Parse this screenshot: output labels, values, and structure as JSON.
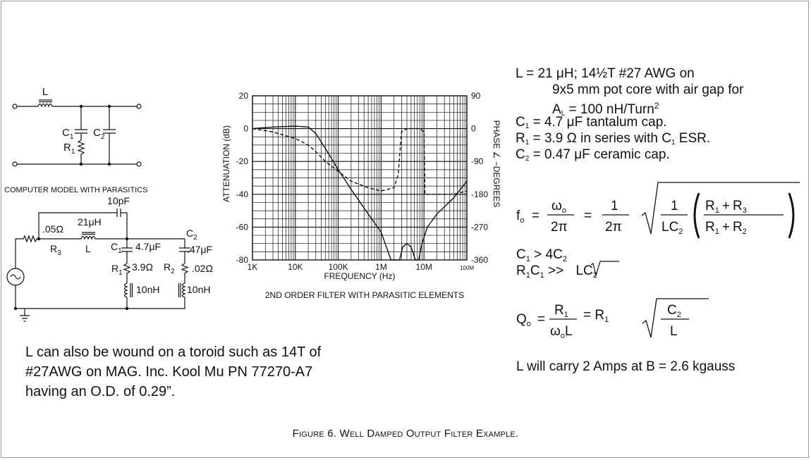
{
  "schematic_top": {
    "L": "L",
    "C1": "C",
    "C1_sub": "1",
    "R1": "R",
    "R1_sub": "1",
    "C2": "C",
    "C2_sub": "2"
  },
  "model_heading": "COMPUTER MODEL WITH PARASITICS",
  "schematic_model": {
    "cap_10pF": "10pF",
    "r3_value": ".05Ω",
    "r3_label": "R",
    "r3_sub": "3",
    "l_value": "21μH",
    "l_label": "L",
    "c1_label": "C",
    "c1_sub": "1",
    "c1_value": "4.7μF",
    "r1_label": "R",
    "r1_sub": "1",
    "r1_value": "3.9Ω",
    "r2_label": "R",
    "r2_sub": "2",
    "r2_value": ".02Ω",
    "c2_label": "C",
    "c2_sub": "2",
    "c2_value": ".47μF",
    "esl1": "10nH",
    "esl2": "10nH"
  },
  "chart_data": {
    "type": "line",
    "title": "2ND ORDER FILTER WITH PARASITIC ELEMENTS",
    "xlabel": "FREQUENCY (Hz)",
    "ylabel": "ATTENUATION (dB)",
    "y2label": "PHASE ∠ −DEGREES",
    "x_scale": "log",
    "xlim": [
      1000,
      100000000
    ],
    "ylim": [
      -80,
      20
    ],
    "y2lim": [
      -360,
      90
    ],
    "x_ticks": [
      "1K",
      "10K",
      "100K",
      "1M",
      "10M",
      "100M"
    ],
    "y_ticks": [
      "20",
      "0",
      "-20",
      "-40",
      "-60",
      "-80"
    ],
    "y2_ticks": [
      "90",
      "0",
      "-90",
      "-180",
      "-270",
      "-360"
    ],
    "grid": true,
    "series": [
      {
        "style": "solid",
        "axis": "left",
        "x": [
          1000,
          3000,
          10000,
          20000,
          30000,
          50000,
          100000,
          200000,
          500000,
          1000000,
          1700000,
          2700000,
          3200000,
          4000000,
          5000000,
          6300000,
          7500000,
          9000000,
          12000000,
          20000000,
          50000000,
          100000000
        ],
        "y": [
          0,
          1,
          1.5,
          1,
          -3,
          -12,
          -25,
          -37,
          -52,
          -63,
          -80,
          -80,
          -72,
          -70,
          -72,
          -80,
          -80,
          -70,
          -60,
          -52,
          -42,
          -32
        ]
      },
      {
        "style": "dashed",
        "axis": "right",
        "x": [
          1000,
          3000,
          10000,
          20000,
          30000,
          50000,
          100000,
          200000,
          500000,
          1000000,
          2000000,
          2500000,
          3000000,
          4000000,
          8000000,
          10000000,
          10500000,
          20000000,
          50000000,
          100000000
        ],
        "y": [
          0,
          -9,
          -27,
          -45,
          -63,
          -90,
          -117,
          -144,
          -162,
          -171,
          -162,
          -126,
          -9,
          0,
          0,
          -9,
          -180,
          -180,
          -180,
          -171
        ]
      }
    ]
  },
  "specs": {
    "l_line1": "L =  21 μH; 14½T #27 AWG on",
    "l_line2": "9x5 mm pot core with air gap for",
    "al_label": "A",
    "al_sub": "L",
    "al_value": " = 100 nH/Turn",
    "al_sup": "2",
    "c1_label": "C",
    "c1_sub": "1",
    "c1_text": " = 4.7 μF tantalum cap.",
    "r1_label": "R",
    "r1_sub": "1",
    "r1_text": " = 3.9 Ω in series with C",
    "r1_tail_sub": "1",
    "r1_tail": " ESR.",
    "c2_label": "C",
    "c2_sub": "2",
    "c2_text": " = 0.47 μF ceramic cap."
  },
  "formulas": {
    "f_label": "f",
    "f_sub": "o",
    "eq": "=",
    "omega": "ω",
    "omega_sub": "o",
    "two_pi": "2π",
    "one": "1",
    "lc2_L": "LC",
    "lc2_sub": "2",
    "r1": "R",
    "r1_sub": "1",
    "r3": "R",
    "r3_sub": "3",
    "r2": "R",
    "r2_sub": "2",
    "plus": "+",
    "cond1_a": "C",
    "cond1_a_sub": "1",
    "cond1_b": " > 4C",
    "cond1_b_sub": "2",
    "cond2_a": "R",
    "cond2_a_sub": "1",
    "cond2_b": "C",
    "cond2_b_sub": "1",
    "cond2_c": " >> ",
    "cond2_d": "LC",
    "cond2_d_sub": "2",
    "q_label": "Q",
    "q_sub": "o",
    "q_num": "R",
    "q_num_sub": "1",
    "q_den_omega": "ω",
    "q_den_sub": "o",
    "q_den_L": "L",
    "q_mid": "= R",
    "q_mid_sub": "1",
    "q_rad_num": "C",
    "q_rad_num_sub": "2",
    "q_rad_den": "L"
  },
  "current_note": "L will carry 2 Amps at B = 2.6 kgauss",
  "toroid_note": {
    "line1": "L can also be wound on a toroid such as 14T of",
    "line2": "#27AWG on MAG. Inc. Kool Mu PN 77270-A7",
    "line3": "having an O.D. of 0.29”."
  },
  "caption": "Figure 6. Well Damped Output Filter Example."
}
